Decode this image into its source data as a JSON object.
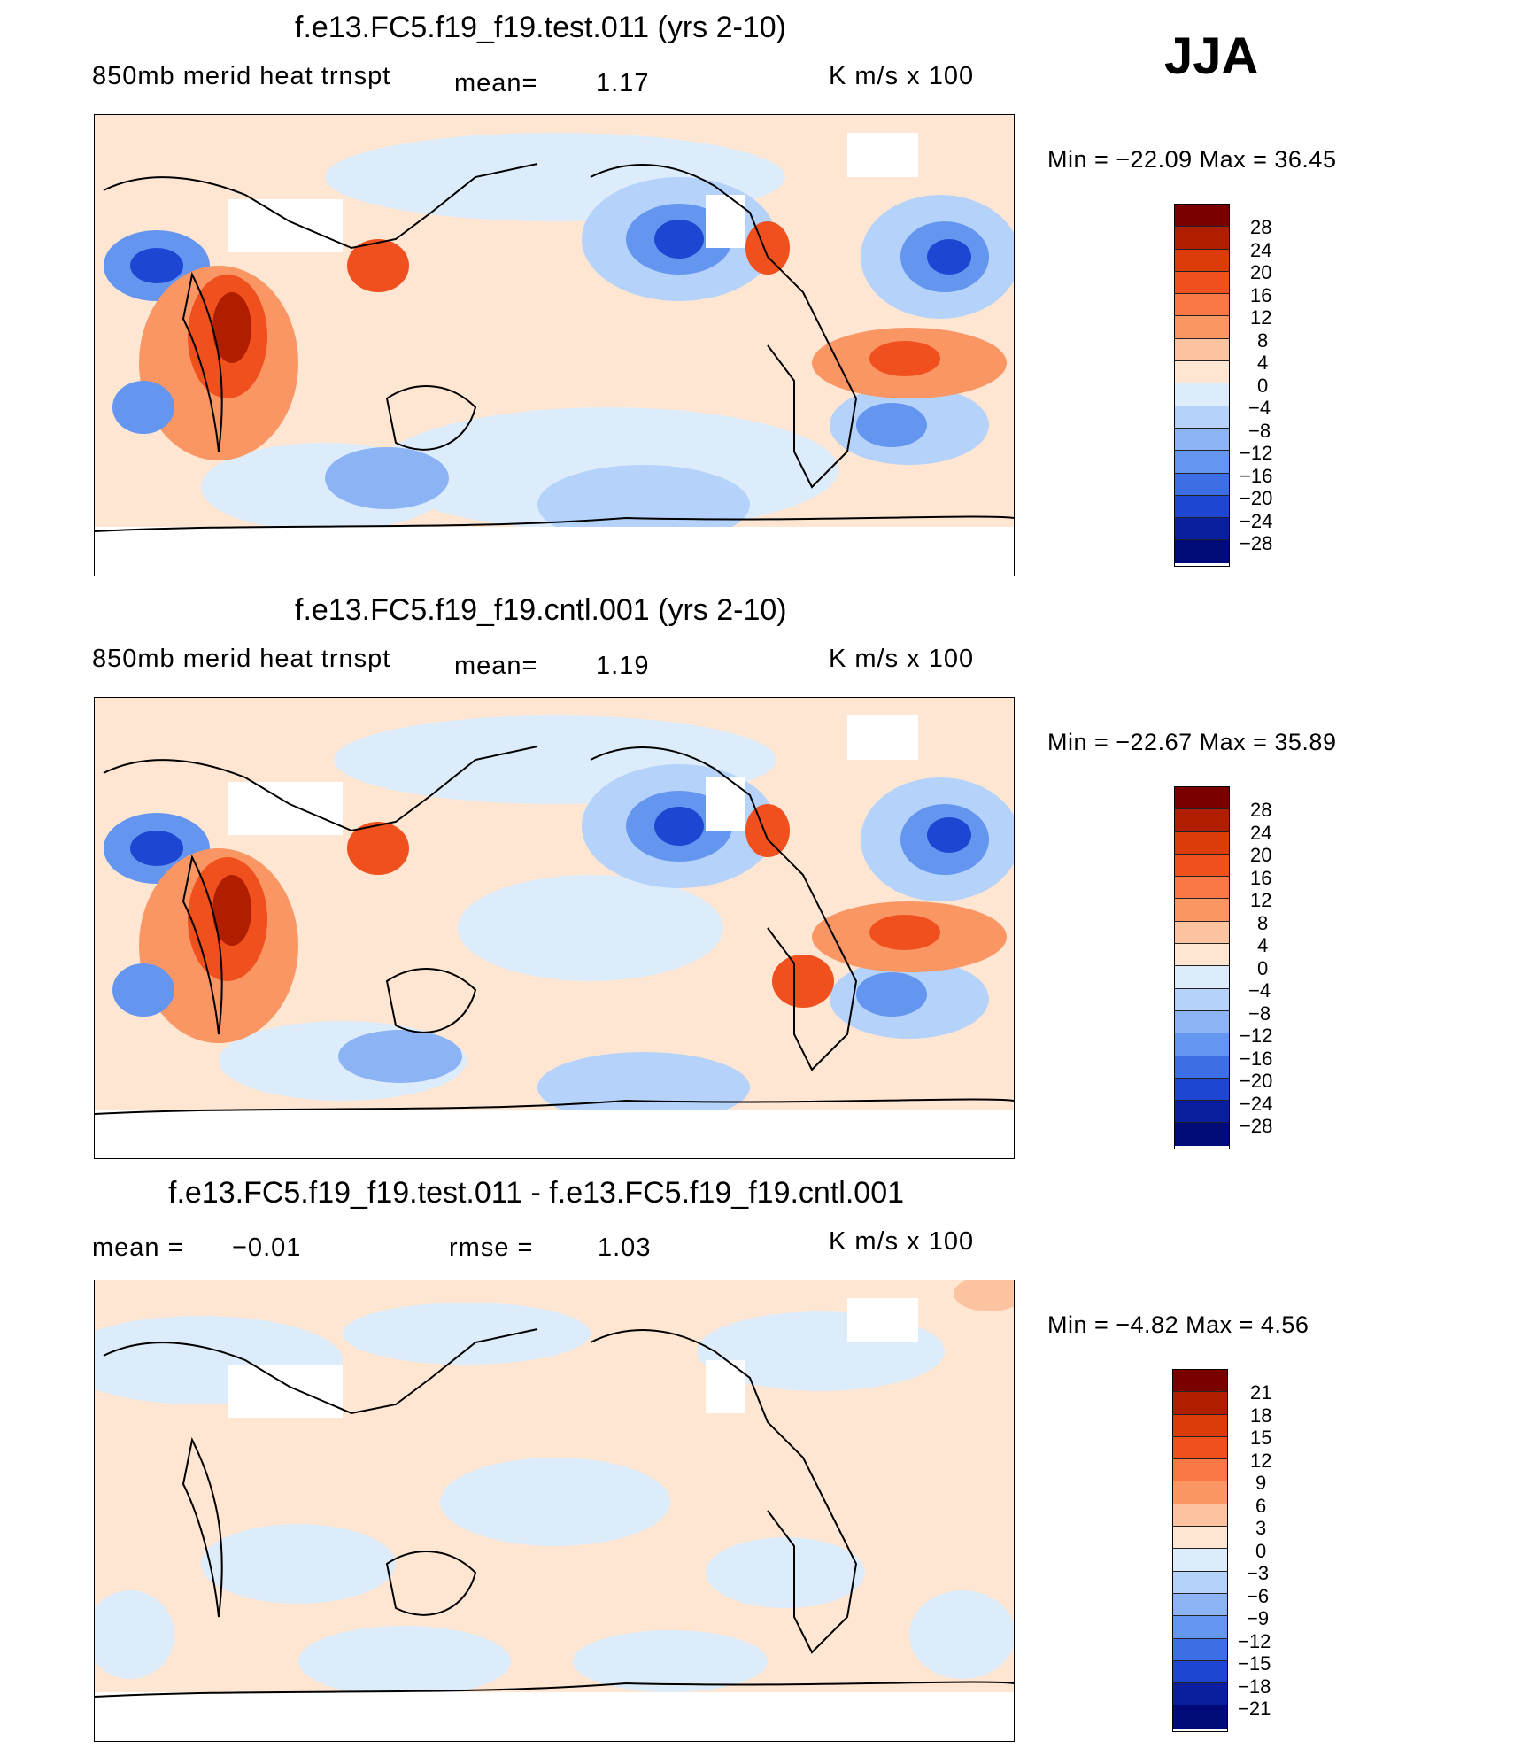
{
  "season": "JJA",
  "panels": [
    {
      "title": "f.e13.FC5.f19_f19.test.011 (yrs 2-10)",
      "field_label": "850mb  merid  heat  trnspt",
      "mean_label": "mean=",
      "mean_value": "1.17",
      "units": "K  m/s  x  100",
      "min_text": "Min  =  −22.09  Max  =    36.45",
      "min": -22.09,
      "max": 36.45,
      "colorbar_ticks": [
        "28",
        "24",
        "20",
        "16",
        "12",
        "8",
        "4",
        "0",
        "−4",
        "−8",
        "−12",
        "−16",
        "−20",
        "−24",
        "−28"
      ]
    },
    {
      "title": "f.e13.FC5.f19_f19.cntl.001 (yrs 2-10)",
      "field_label": "850mb  merid  heat  trnspt",
      "mean_label": "mean=",
      "mean_value": "1.19",
      "units": "K  m/s  x  100",
      "min_text": "Min  =  −22.67  Max  =    35.89",
      "min": -22.67,
      "max": 35.89,
      "colorbar_ticks": [
        "28",
        "24",
        "20",
        "16",
        "12",
        "8",
        "4",
        "0",
        "−4",
        "−8",
        "−12",
        "−16",
        "−20",
        "−24",
        "−28"
      ]
    },
    {
      "title": "f.e13.FC5.f19_f19.test.011 - f.e13.FC5.f19_f19.cntl.001",
      "mean_label": "mean  =",
      "mean_value": "−0.01",
      "rmse_label": "rmse  =",
      "rmse_value": "1.03",
      "units": "K  m/s  x  100",
      "min_text": "Min  =    −4.82  Max  =      4.56",
      "min": -4.82,
      "max": 4.56,
      "colorbar_ticks": [
        "21",
        "18",
        "15",
        "12",
        "9",
        "6",
        "3",
        "0",
        "−3",
        "−6",
        "−9",
        "−12",
        "−15",
        "−18",
        "−21"
      ]
    }
  ],
  "colors": {
    "scale": [
      "#7a0000",
      "#b01e00",
      "#dc3c0a",
      "#f0501e",
      "#fa7846",
      "#fa9664",
      "#fcc3a0",
      "#fee6d2",
      "#dcecfa",
      "#b4d2fa",
      "#8cb4f5",
      "#6496f0",
      "#3c6ee6",
      "#1e46d2",
      "#0a1ea0",
      "#000a78"
    ]
  }
}
